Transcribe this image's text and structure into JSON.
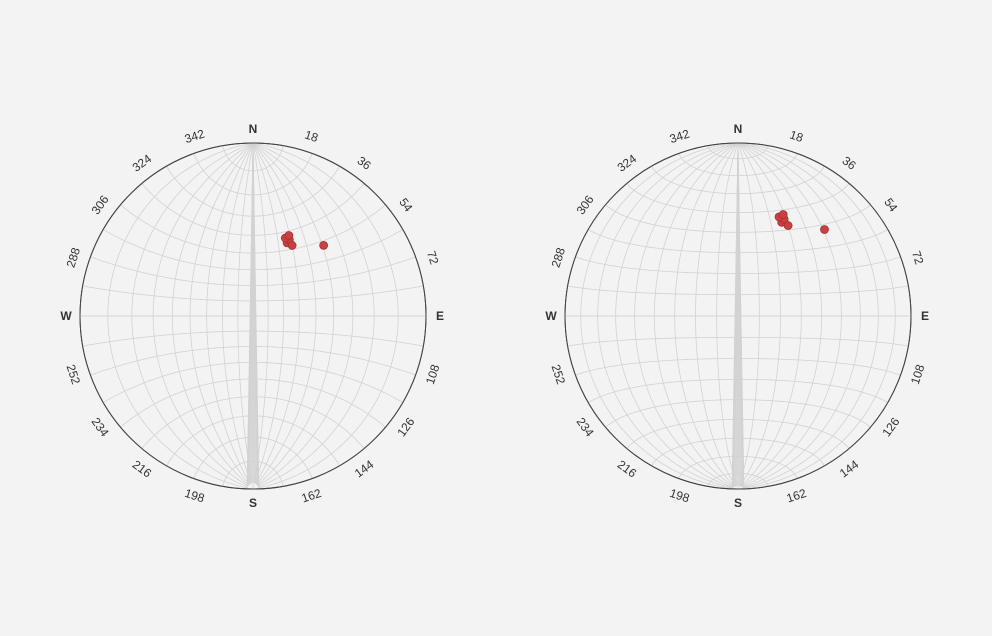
{
  "chart_data": [
    {
      "type": "scatter",
      "projection": "stereonet",
      "net": "wulff",
      "cardinals": {
        "north": "N",
        "east": "E",
        "south": "S",
        "west": "W"
      },
      "azimuth_ticks": [
        "18",
        "36",
        "54",
        "72",
        "108",
        "126",
        "144",
        "162",
        "198",
        "216",
        "234",
        "252",
        "288",
        "306",
        "324",
        "342"
      ],
      "tick_azimuths": [
        18,
        36,
        54,
        72,
        108,
        126,
        144,
        162,
        198,
        216,
        234,
        252,
        288,
        306,
        324,
        342
      ],
      "grid_interval_deg": 10,
      "points": [
        {
          "trend": 25.0,
          "plunge": 40.0
        },
        {
          "trend": 25.5,
          "plunge": 38.0
        },
        {
          "trend": 29.0,
          "plunge": 40.0
        },
        {
          "trend": 22.5,
          "plunge": 38.0
        },
        {
          "trend": 24.0,
          "plunge": 36.0
        },
        {
          "trend": 45.0,
          "plunge": 30.0
        }
      ],
      "point_color": "#c94040"
    },
    {
      "type": "scatter",
      "projection": "stereonet",
      "net": "schmidt",
      "cardinals": {
        "north": "N",
        "east": "E",
        "south": "S",
        "west": "W"
      },
      "azimuth_ticks": [
        "18",
        "36",
        "54",
        "72",
        "108",
        "126",
        "144",
        "162",
        "198",
        "216",
        "234",
        "252",
        "288",
        "306",
        "324",
        "342"
      ],
      "tick_azimuths": [
        18,
        36,
        54,
        72,
        108,
        126,
        144,
        162,
        198,
        216,
        234,
        252,
        288,
        306,
        324,
        342
      ],
      "grid_interval_deg": 10,
      "points": [
        {
          "trend": 25.0,
          "plunge": 40.0
        },
        {
          "trend": 25.5,
          "plunge": 38.0
        },
        {
          "trend": 29.0,
          "plunge": 40.0
        },
        {
          "trend": 22.5,
          "plunge": 38.0
        },
        {
          "trend": 24.0,
          "plunge": 36.0
        },
        {
          "trend": 45.0,
          "plunge": 30.0
        }
      ],
      "point_color": "#c94040"
    }
  ]
}
